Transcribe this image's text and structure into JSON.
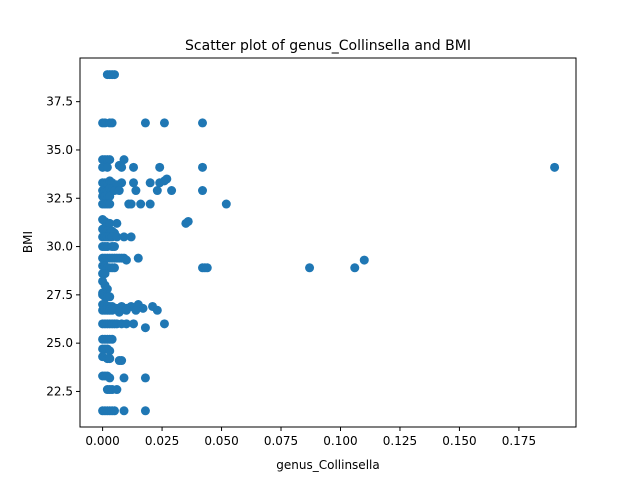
{
  "chart_data": {
    "type": "scatter",
    "title": "Scatter plot of genus_Collinsella and BMI",
    "xlabel": "genus_Collinsella",
    "ylabel": "BMI",
    "xlim": [
      -0.0095,
      0.199
    ],
    "ylim": [
      20.66,
      39.76
    ],
    "xticks": [
      0.0,
      0.025,
      0.05,
      0.075,
      0.1,
      0.125,
      0.15,
      0.175
    ],
    "xtick_labels": [
      "0.000",
      "0.025",
      "0.050",
      "0.075",
      "0.100",
      "0.125",
      "0.150",
      "0.175"
    ],
    "yticks": [
      22.5,
      25.0,
      27.5,
      30.0,
      32.5,
      35.0,
      37.5
    ],
    "ytick_labels": [
      "22.5",
      "25.0",
      "27.5",
      "30.0",
      "32.5",
      "35.0",
      "37.5"
    ],
    "grid": false,
    "marker_color": "#1f77b4",
    "series": [
      {
        "points": [
          [
            0.002,
            38.9
          ],
          [
            0.003,
            38.9
          ],
          [
            0.004,
            38.9
          ],
          [
            0.005,
            38.9
          ],
          [
            0.0,
            36.4
          ],
          [
            0.001,
            36.4
          ],
          [
            0.003,
            36.4
          ],
          [
            0.004,
            36.4
          ],
          [
            0.018,
            36.4
          ],
          [
            0.026,
            36.4
          ],
          [
            0.042,
            36.4
          ],
          [
            0.0,
            34.5
          ],
          [
            0.001,
            34.5
          ],
          [
            0.002,
            34.5
          ],
          [
            0.003,
            34.5
          ],
          [
            0.007,
            34.2
          ],
          [
            0.009,
            34.5
          ],
          [
            0.0,
            34.1
          ],
          [
            0.002,
            34.1
          ],
          [
            0.008,
            34.1
          ],
          [
            0.013,
            34.1
          ],
          [
            0.024,
            34.1
          ],
          [
            0.042,
            34.1
          ],
          [
            0.19,
            34.1
          ],
          [
            0.0,
            33.3
          ],
          [
            0.001,
            33.3
          ],
          [
            0.002,
            33.3
          ],
          [
            0.003,
            33.4
          ],
          [
            0.004,
            33.3
          ],
          [
            0.006,
            33.2
          ],
          [
            0.008,
            33.3
          ],
          [
            0.013,
            33.3
          ],
          [
            0.02,
            33.3
          ],
          [
            0.024,
            33.3
          ],
          [
            0.026,
            33.4
          ],
          [
            0.027,
            33.5
          ],
          [
            0.0,
            32.9
          ],
          [
            0.001,
            32.9
          ],
          [
            0.002,
            32.9
          ],
          [
            0.003,
            33.0
          ],
          [
            0.004,
            32.9
          ],
          [
            0.005,
            32.9
          ],
          [
            0.007,
            32.9
          ],
          [
            0.014,
            32.9
          ],
          [
            0.023,
            32.9
          ],
          [
            0.029,
            32.9
          ],
          [
            0.042,
            32.9
          ],
          [
            0.0,
            32.6
          ],
          [
            0.001,
            32.6
          ],
          [
            0.002,
            32.5
          ],
          [
            0.003,
            32.6
          ],
          [
            0.0,
            32.2
          ],
          [
            0.001,
            32.2
          ],
          [
            0.002,
            32.2
          ],
          [
            0.003,
            32.2
          ],
          [
            0.011,
            32.2
          ],
          [
            0.012,
            32.2
          ],
          [
            0.016,
            32.2
          ],
          [
            0.02,
            32.2
          ],
          [
            0.052,
            32.2
          ],
          [
            0.0,
            31.4
          ],
          [
            0.001,
            31.3
          ],
          [
            0.002,
            31.2
          ],
          [
            0.003,
            31.2
          ],
          [
            0.006,
            31.2
          ],
          [
            0.035,
            31.2
          ],
          [
            0.036,
            31.3
          ],
          [
            0.0,
            30.9
          ],
          [
            0.001,
            30.8
          ],
          [
            0.002,
            30.8
          ],
          [
            0.003,
            30.7
          ],
          [
            0.004,
            30.8
          ],
          [
            0.005,
            30.7
          ],
          [
            0.0,
            30.5
          ],
          [
            0.001,
            30.5
          ],
          [
            0.002,
            30.5
          ],
          [
            0.003,
            30.5
          ],
          [
            0.004,
            30.5
          ],
          [
            0.006,
            30.5
          ],
          [
            0.009,
            30.5
          ],
          [
            0.012,
            30.5
          ],
          [
            0.0,
            30.0
          ],
          [
            0.001,
            30.0
          ],
          [
            0.002,
            30.0
          ],
          [
            0.004,
            30.0
          ],
          [
            0.005,
            30.0
          ],
          [
            0.0,
            29.4
          ],
          [
            0.001,
            29.4
          ],
          [
            0.002,
            29.4
          ],
          [
            0.003,
            29.4
          ],
          [
            0.004,
            29.4
          ],
          [
            0.005,
            29.4
          ],
          [
            0.006,
            29.4
          ],
          [
            0.007,
            29.4
          ],
          [
            0.008,
            29.4
          ],
          [
            0.009,
            29.4
          ],
          [
            0.01,
            29.3
          ],
          [
            0.015,
            29.4
          ],
          [
            0.11,
            29.3
          ],
          [
            0.0,
            29.0
          ],
          [
            0.001,
            29.0
          ],
          [
            0.002,
            28.9
          ],
          [
            0.003,
            28.9
          ],
          [
            0.004,
            28.9
          ],
          [
            0.005,
            28.9
          ],
          [
            0.042,
            28.9
          ],
          [
            0.043,
            28.9
          ],
          [
            0.044,
            28.9
          ],
          [
            0.087,
            28.9
          ],
          [
            0.106,
            28.9
          ],
          [
            0.0,
            28.6
          ],
          [
            0.001,
            28.6
          ],
          [
            0.0,
            28.2
          ],
          [
            0.001,
            28.0
          ],
          [
            0.002,
            27.8
          ],
          [
            0.0,
            27.6
          ],
          [
            0.0,
            27.5
          ],
          [
            0.001,
            27.4
          ],
          [
            0.002,
            27.4
          ],
          [
            0.003,
            27.4
          ],
          [
            0.0,
            27.0
          ],
          [
            0.001,
            27.0
          ],
          [
            0.002,
            26.9
          ],
          [
            0.003,
            26.9
          ],
          [
            0.004,
            26.9
          ],
          [
            0.005,
            26.8
          ],
          [
            0.006,
            26.8
          ],
          [
            0.007,
            26.8
          ],
          [
            0.008,
            26.9
          ],
          [
            0.01,
            26.8
          ],
          [
            0.012,
            26.9
          ],
          [
            0.015,
            27.0
          ],
          [
            0.017,
            26.8
          ],
          [
            0.021,
            26.9
          ],
          [
            0.023,
            26.7
          ],
          [
            0.0,
            26.7
          ],
          [
            0.001,
            26.7
          ],
          [
            0.002,
            26.7
          ],
          [
            0.003,
            26.7
          ],
          [
            0.004,
            26.7
          ],
          [
            0.007,
            26.6
          ],
          [
            0.01,
            26.7
          ],
          [
            0.014,
            26.7
          ],
          [
            0.0,
            26.0
          ],
          [
            0.001,
            26.0
          ],
          [
            0.002,
            26.0
          ],
          [
            0.003,
            26.0
          ],
          [
            0.004,
            26.0
          ],
          [
            0.005,
            26.0
          ],
          [
            0.006,
            26.0
          ],
          [
            0.008,
            26.0
          ],
          [
            0.01,
            26.0
          ],
          [
            0.013,
            26.0
          ],
          [
            0.018,
            25.8
          ],
          [
            0.026,
            26.0
          ],
          [
            0.0,
            25.2
          ],
          [
            0.001,
            25.2
          ],
          [
            0.002,
            25.2
          ],
          [
            0.003,
            25.2
          ],
          [
            0.004,
            25.2
          ],
          [
            0.0,
            24.7
          ],
          [
            0.001,
            24.7
          ],
          [
            0.002,
            24.7
          ],
          [
            0.003,
            24.6
          ],
          [
            0.0,
            24.3
          ],
          [
            0.002,
            24.2
          ],
          [
            0.003,
            24.2
          ],
          [
            0.007,
            24.1
          ],
          [
            0.008,
            24.1
          ],
          [
            0.0,
            23.3
          ],
          [
            0.001,
            23.3
          ],
          [
            0.002,
            23.3
          ],
          [
            0.003,
            23.2
          ],
          [
            0.009,
            23.2
          ],
          [
            0.018,
            23.2
          ],
          [
            0.002,
            22.6
          ],
          [
            0.003,
            22.6
          ],
          [
            0.004,
            22.6
          ],
          [
            0.006,
            22.6
          ],
          [
            0.0,
            21.5
          ],
          [
            0.001,
            21.5
          ],
          [
            0.002,
            21.5
          ],
          [
            0.003,
            21.5
          ],
          [
            0.004,
            21.5
          ],
          [
            0.005,
            21.5
          ],
          [
            0.009,
            21.5
          ],
          [
            0.018,
            21.5
          ]
        ]
      }
    ]
  }
}
